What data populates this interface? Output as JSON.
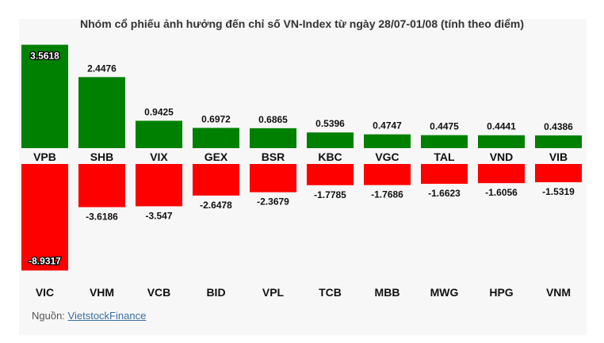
{
  "title": "Nhóm cổ phiếu ảnh hưởng đến chỉ số VN-Index từ ngày 28/07-01/08 (tính theo điểm)",
  "source": {
    "label": "Nguồn:",
    "link_text": "VietstockFinance"
  },
  "colors": {
    "positive": "#008000",
    "negative": "#ff0000",
    "background": "#f7f7f7"
  },
  "chart_data": [
    {
      "type": "bar",
      "series_name": "positive",
      "categories": [
        "VPB",
        "SHB",
        "VIX",
        "GEX",
        "BSR",
        "KBC",
        "VGC",
        "TAL",
        "VND",
        "VIB"
      ],
      "values": [
        3.5618,
        2.4476,
        0.9425,
        0.6972,
        0.6865,
        0.5396,
        0.4747,
        0.4475,
        0.4441,
        0.4386
      ],
      "value_labels": [
        "3.5618",
        "2.4476",
        "0.9425",
        "0.6972",
        "0.6865",
        "0.5396",
        "0.4747",
        "0.4475",
        "0.4441",
        "0.4386"
      ]
    },
    {
      "type": "bar",
      "series_name": "negative",
      "categories": [
        "VIC",
        "VHM",
        "VCB",
        "BID",
        "VPL",
        "TCB",
        "MBB",
        "MWG",
        "HPG",
        "VNM"
      ],
      "values": [
        -8.9317,
        -3.6186,
        -3.547,
        -2.6478,
        -2.3679,
        -1.7785,
        -1.7686,
        -1.6623,
        -1.6056,
        -1.5319
      ],
      "value_labels": [
        "-8.9317",
        "-3.6186",
        "-3.547",
        "-2.6478",
        "-2.3679",
        "-1.7785",
        "-1.7686",
        "-1.6623",
        "-1.6056",
        "-1.5319"
      ]
    }
  ]
}
